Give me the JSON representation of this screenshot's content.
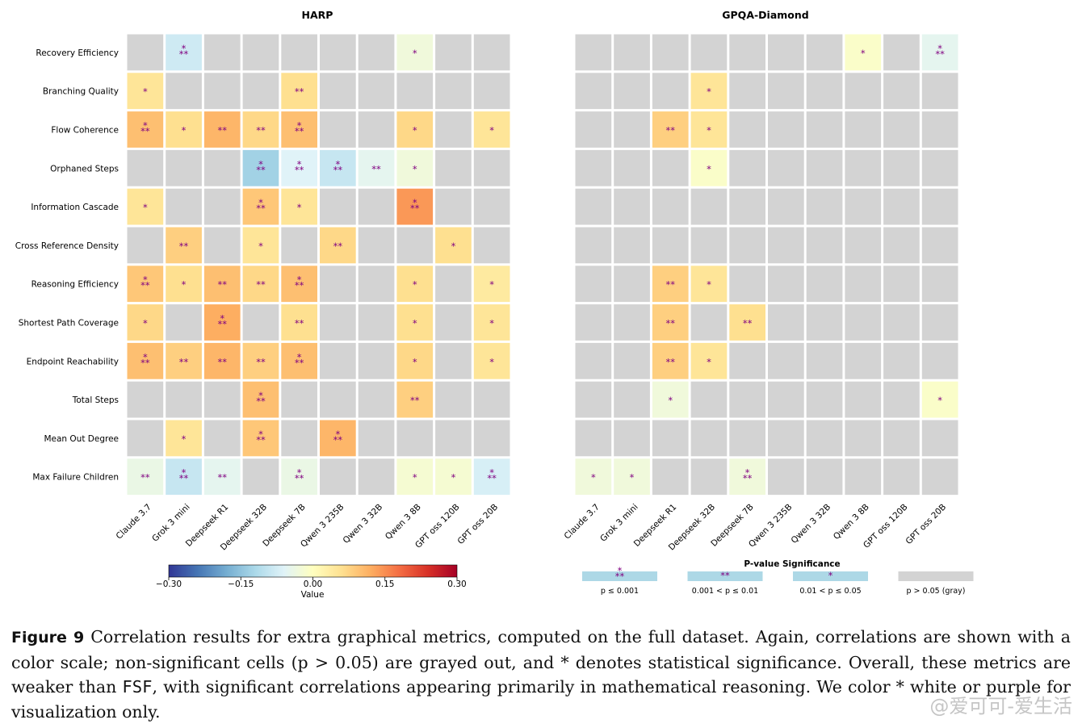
{
  "figure": {
    "label": "Figure 9",
    "caption_part1": "Correlation results for extra graphical metrics, computed on the full dataset. Again, correlations are shown with a color scale; non-significant cells (p > 0.05) are grayed out, and * denotes statistical significance. Overall, these metrics are weaker than ",
    "caption_code": "FSF",
    "caption_part2": ", with significant correlations appearing primarily in mathematical reasoning. We color * white or purple for visualization only."
  },
  "watermark": "@爱可可-爱生活",
  "colors": {
    "insignificant": "#d3d3d3",
    "star": "#800080",
    "legend_swatch": "#add8e6"
  },
  "chart_data": [
    {
      "type": "heatmap",
      "title": "HARP",
      "rows": [
        "Recovery Efficiency",
        "Branching Quality",
        "Flow Coherence",
        "Orphaned Steps",
        "Information Cascade",
        "Cross Reference Density",
        "Reasoning Efficiency",
        "Shortest Path Coverage",
        "Endpoint Reachability",
        "Total Steps",
        "Mean Out Degree",
        "Max Failure Children"
      ],
      "columns": [
        "Claude 3.7",
        "Grok 3 mini",
        "Deepseek R1",
        "Deepseek 32B",
        "Deepseek 7B",
        "Qwen 3 235B",
        "Qwen 3 32B",
        "Qwen 3 8B",
        "GPT oss 120B",
        "GPT oss 20B"
      ],
      "values": [
        [
          null,
          -0.08,
          null,
          null,
          null,
          null,
          null,
          -0.03,
          null,
          null
        ],
        [
          0.05,
          null,
          null,
          null,
          0.06,
          null,
          null,
          null,
          null,
          null
        ],
        [
          0.1,
          0.06,
          0.11,
          0.07,
          0.1,
          null,
          null,
          0.07,
          null,
          0.05
        ],
        [
          null,
          null,
          null,
          -0.13,
          -0.06,
          -0.09,
          -0.05,
          -0.03,
          null,
          null
        ],
        [
          0.05,
          null,
          null,
          0.09,
          0.05,
          null,
          null,
          0.14,
          null,
          null
        ],
        [
          null,
          0.08,
          null,
          0.05,
          null,
          0.07,
          null,
          null,
          0.06,
          null
        ],
        [
          0.09,
          0.06,
          0.1,
          0.07,
          0.1,
          null,
          null,
          0.06,
          null,
          0.04
        ],
        [
          0.07,
          null,
          0.12,
          null,
          0.06,
          null,
          null,
          0.06,
          null,
          0.05
        ],
        [
          0.1,
          0.08,
          0.11,
          0.08,
          0.1,
          null,
          null,
          0.07,
          null,
          0.05
        ],
        [
          null,
          null,
          null,
          0.1,
          null,
          null,
          null,
          0.08,
          null,
          null
        ],
        [
          null,
          0.05,
          null,
          0.09,
          null,
          0.11,
          null,
          null,
          null,
          null
        ],
        [
          -0.04,
          -0.09,
          -0.05,
          null,
          -0.04,
          null,
          null,
          -0.02,
          -0.02,
          -0.07
        ]
      ],
      "stars": [
        [
          "",
          "***",
          "",
          "",
          "",
          "",
          "",
          "*",
          "",
          ""
        ],
        [
          "*",
          "",
          "",
          "",
          "**",
          "",
          "",
          "",
          "",
          ""
        ],
        [
          "***",
          "*",
          "**",
          "**",
          "***",
          "",
          "",
          "*",
          "",
          "*"
        ],
        [
          "",
          "",
          "",
          "***",
          "***",
          "***",
          "**",
          "*",
          "",
          ""
        ],
        [
          "*",
          "",
          "",
          "***",
          "*",
          "",
          "",
          "***",
          "",
          ""
        ],
        [
          "",
          "**",
          "",
          "*",
          "",
          "**",
          "",
          "",
          "*",
          ""
        ],
        [
          "***",
          "*",
          "**",
          "**",
          "***",
          "",
          "",
          "*",
          "",
          "*"
        ],
        [
          "*",
          "",
          "***",
          "",
          "**",
          "",
          "",
          "*",
          "",
          "*"
        ],
        [
          "***",
          "**",
          "**",
          "**",
          "***",
          "",
          "",
          "*",
          "",
          "*"
        ],
        [
          "",
          "",
          "",
          "***",
          "",
          "",
          "",
          "**",
          "",
          ""
        ],
        [
          "",
          "*",
          "",
          "***",
          "",
          "***",
          "",
          "",
          "",
          ""
        ],
        [
          "**",
          "***",
          "**",
          "",
          "***",
          "",
          "",
          "*",
          "*",
          "***"
        ]
      ],
      "colorbar": {
        "ticks": [
          "−0.30",
          "−0.15",
          "0.00",
          "0.15",
          "0.30"
        ],
        "label": "Value",
        "range": [
          -0.3,
          0.3
        ]
      }
    },
    {
      "type": "heatmap",
      "title": "GPQA-Diamond",
      "rows": [
        "Recovery Efficiency",
        "Branching Quality",
        "Flow Coherence",
        "Orphaned Steps",
        "Information Cascade",
        "Cross Reference Density",
        "Reasoning Efficiency",
        "Shortest Path Coverage",
        "Endpoint Reachability",
        "Total Steps",
        "Mean Out Degree",
        "Max Failure Children"
      ],
      "columns": [
        "Claude 3.7",
        "Grok 3 mini",
        "Deepseek R1",
        "Deepseek 32B",
        "Deepseek 7B",
        "Qwen 3 235B",
        "Qwen 3 32B",
        "Qwen 3 8B",
        "GPT oss 120B",
        "GPT oss 20B"
      ],
      "values": [
        [
          null,
          null,
          null,
          null,
          null,
          null,
          null,
          -0.01,
          null,
          -0.05
        ],
        [
          null,
          null,
          null,
          0.05,
          null,
          null,
          null,
          null,
          null,
          null
        ],
        [
          null,
          null,
          0.08,
          0.05,
          null,
          null,
          null,
          null,
          null,
          null
        ],
        [
          null,
          null,
          null,
          -0.01,
          null,
          null,
          null,
          null,
          null,
          null
        ],
        [
          null,
          null,
          null,
          null,
          null,
          null,
          null,
          null,
          null,
          null
        ],
        [
          null,
          null,
          null,
          null,
          null,
          null,
          null,
          null,
          null,
          null
        ],
        [
          null,
          null,
          0.08,
          0.05,
          null,
          null,
          null,
          null,
          null,
          null
        ],
        [
          null,
          null,
          0.08,
          null,
          0.06,
          null,
          null,
          null,
          null,
          null
        ],
        [
          null,
          null,
          0.08,
          0.05,
          null,
          null,
          null,
          null,
          null,
          null
        ],
        [
          null,
          null,
          -0.03,
          null,
          null,
          null,
          null,
          null,
          null,
          -0.01
        ],
        [
          null,
          null,
          null,
          null,
          null,
          null,
          null,
          null,
          null,
          null
        ],
        [
          -0.03,
          -0.03,
          null,
          null,
          -0.03,
          null,
          null,
          null,
          null,
          null
        ]
      ],
      "stars": [
        [
          "",
          "",
          "",
          "",
          "",
          "",
          "",
          "*",
          "",
          "***"
        ],
        [
          "",
          "",
          "",
          "*",
          "",
          "",
          "",
          "",
          "",
          ""
        ],
        [
          "",
          "",
          "**",
          "*",
          "",
          "",
          "",
          "",
          "",
          ""
        ],
        [
          "",
          "",
          "",
          "*",
          "",
          "",
          "",
          "",
          "",
          ""
        ],
        [
          "",
          "",
          "",
          "",
          "",
          "",
          "",
          "",
          "",
          ""
        ],
        [
          "",
          "",
          "",
          "",
          "",
          "",
          "",
          "",
          "",
          ""
        ],
        [
          "",
          "",
          "**",
          "*",
          "",
          "",
          "",
          "",
          "",
          ""
        ],
        [
          "",
          "",
          "**",
          "",
          "**",
          "",
          "",
          "",
          "",
          ""
        ],
        [
          "",
          "",
          "**",
          "*",
          "",
          "",
          "",
          "",
          "",
          ""
        ],
        [
          "",
          "",
          "*",
          "",
          "",
          "",
          "",
          "",
          "",
          "*"
        ],
        [
          "",
          "",
          "",
          "",
          "",
          "",
          "",
          "",
          "",
          ""
        ],
        [
          "*",
          "*",
          "",
          "",
          "***",
          "",
          "",
          "",
          "",
          ""
        ]
      ],
      "significance_legend": {
        "title": "P-value Significance",
        "items": [
          {
            "stars": "***",
            "label": "p ≤ 0.001"
          },
          {
            "stars": "**",
            "label": "0.001 < p ≤ 0.01"
          },
          {
            "stars": "*",
            "label": "0.01 < p ≤ 0.05"
          },
          {
            "stars": "",
            "label": "p > 0.05 (gray)"
          }
        ]
      }
    }
  ]
}
